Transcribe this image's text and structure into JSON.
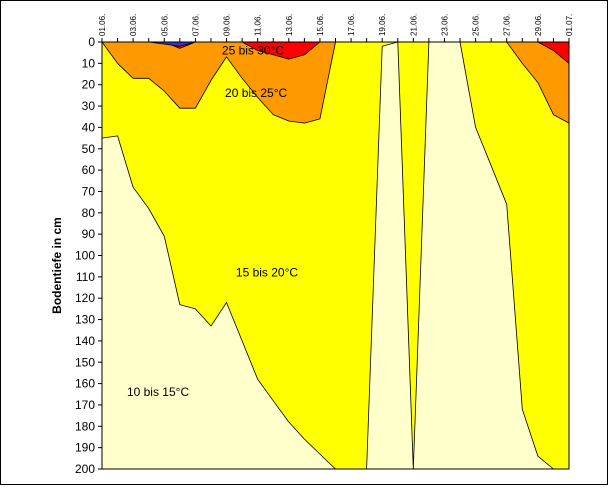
{
  "chart_data": {
    "type": "area",
    "title": "",
    "xlabel": "",
    "ylabel": "Bodentiefe in cm",
    "ylim": [
      0,
      200
    ],
    "yticks": [
      0,
      10,
      20,
      30,
      40,
      50,
      60,
      70,
      80,
      90,
      100,
      110,
      120,
      130,
      140,
      150,
      160,
      170,
      180,
      190,
      200
    ],
    "y_inverted": true,
    "x_tick_labels": [
      "01.06.",
      "03.06.",
      "05.06.",
      "07.06.",
      "09.06.",
      "11.06.",
      "13.06.",
      "15.06.",
      "17.06.",
      "19.06.",
      "21.06.",
      "23.06.",
      "25.06.",
      "27.06.",
      "29.06.",
      "01.07."
    ],
    "x_days": [
      1,
      2,
      3,
      4,
      5,
      6,
      7,
      8,
      9,
      10,
      11,
      12,
      13,
      14,
      15,
      16,
      17,
      18,
      19,
      20,
      21,
      22,
      23,
      24,
      25,
      26,
      27,
      28,
      29,
      30,
      31
    ],
    "boundaries": [
      {
        "name": "boundary_10_15",
        "depths": [
          45,
          44,
          68,
          78,
          91,
          123,
          125,
          133,
          122,
          140,
          158,
          168,
          178,
          186,
          193,
          200,
          200,
          200,
          2,
          0,
          200,
          0,
          0,
          0,
          40,
          58,
          76,
          172,
          194,
          200,
          200
        ]
      },
      {
        "name": "boundary_15_20",
        "depths": [
          0,
          10,
          17,
          17,
          23,
          31,
          31,
          18,
          7,
          17,
          26,
          34,
          37,
          38,
          36,
          0,
          0,
          0,
          0,
          0,
          0,
          0,
          0,
          0,
          0,
          0,
          0,
          10,
          19,
          34,
          38
        ]
      },
      {
        "name": "boundary_20_25",
        "depths": [
          0,
          0,
          0,
          0,
          0,
          3,
          0,
          0,
          0,
          0,
          4,
          6,
          8,
          6,
          0,
          0,
          0,
          0,
          0,
          0,
          0,
          0,
          0,
          0,
          0,
          0,
          0,
          0,
          0,
          4,
          10
        ]
      },
      {
        "name": "boundary_25_30",
        "depths": [
          0,
          0,
          0,
          0,
          1,
          2,
          0,
          0,
          0,
          0,
          0,
          0,
          0,
          0,
          0,
          0,
          0,
          0,
          0,
          0,
          0,
          0,
          0,
          0,
          0,
          0,
          0,
          0,
          0,
          0,
          0
        ]
      }
    ],
    "series": [
      {
        "name": "10 bis 15°C",
        "color": "#FFFFCC"
      },
      {
        "name": "15 bis 20°C",
        "color": "#FFFF00"
      },
      {
        "name": "20 bis 25°C",
        "color": "#FF9900"
      },
      {
        "name": "25 bis 30°C",
        "color": "#FF0000"
      },
      {
        "color": "#3333CC"
      }
    ],
    "labels": [
      {
        "text": "10 bis 15°C",
        "day": 4.6,
        "depth": 164
      },
      {
        "text": "15 bis 20°C",
        "day": 11.6,
        "depth": 108
      },
      {
        "text": "20 bis 25°C",
        "day": 10.9,
        "depth": 24
      },
      {
        "text": "25 bis 30°C",
        "day": 10.7,
        "depth": 4
      }
    ]
  }
}
